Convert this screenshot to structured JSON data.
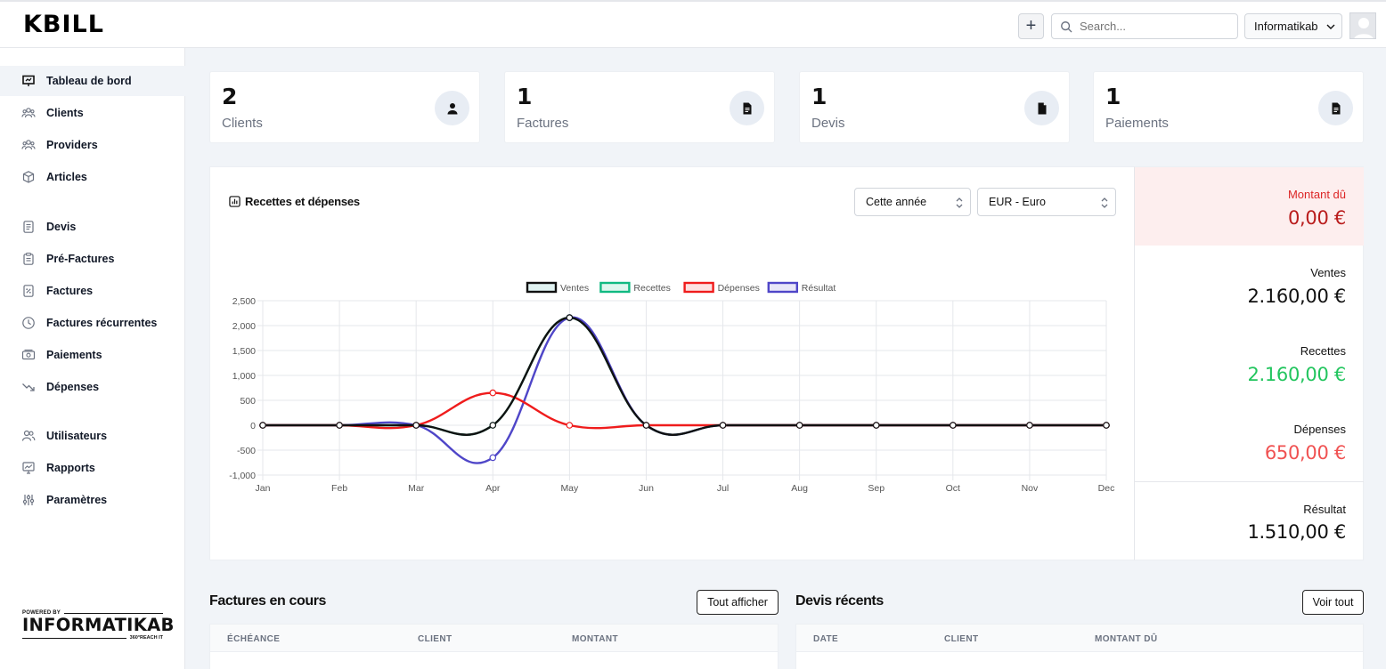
{
  "app": {
    "logo": "KBILL"
  },
  "header": {
    "plus_label": "+",
    "search_placeholder": "Search...",
    "company": "Informatikab"
  },
  "sidebar": {
    "items": [
      {
        "label": "Tableau de bord",
        "icon": "presentation-chart-icon"
      },
      {
        "label": "Clients",
        "icon": "users-icon"
      },
      {
        "label": "Providers",
        "icon": "users-icon"
      },
      {
        "label": "Articles",
        "icon": "cube-icon"
      },
      {
        "label": "Devis",
        "icon": "document-text-icon"
      },
      {
        "label": "Pré-Factures",
        "icon": "clipboard-icon"
      },
      {
        "label": "Factures",
        "icon": "receipt-icon"
      },
      {
        "label": "Factures récurrentes",
        "icon": "clock-icon"
      },
      {
        "label": "Paiements",
        "icon": "cash-icon"
      },
      {
        "label": "Dépenses",
        "icon": "trending-down-icon"
      },
      {
        "label": "Utilisateurs",
        "icon": "user-group-icon"
      },
      {
        "label": "Rapports",
        "icon": "chart-icon"
      },
      {
        "label": "Paramètres",
        "icon": "adjustments-icon"
      }
    ],
    "powered_by": "POWERED BY",
    "brand": "INFORMATIKAB",
    "tagline": "360°REACH IT"
  },
  "stats": [
    {
      "value": "2",
      "label": "Clients",
      "icon": "user-icon"
    },
    {
      "value": "1",
      "label": "Factures",
      "icon": "document-icon"
    },
    {
      "value": "1",
      "label": "Devis",
      "icon": "file-icon"
    },
    {
      "value": "1",
      "label": "Paiements",
      "icon": "document-icon"
    }
  ],
  "chart_panel": {
    "title": "Recettes et dépenses",
    "period": "Cette année",
    "currency": "EUR - Euro"
  },
  "chart_data": {
    "type": "line",
    "categories": [
      "Jan",
      "Feb",
      "Mar",
      "Apr",
      "May",
      "Jun",
      "Jul",
      "Aug",
      "Sep",
      "Oct",
      "Nov",
      "Dec"
    ],
    "ylim": [
      -1000,
      2500
    ],
    "yticks": [
      "2,500",
      "2,000",
      "1,500",
      "1,000",
      "500",
      "0",
      "-500",
      "-1,000"
    ],
    "series": [
      {
        "name": "Ventes",
        "color": "#111111",
        "values": [
          0,
          0,
          0,
          0,
          2160,
          0,
          0,
          0,
          0,
          0,
          0,
          0
        ]
      },
      {
        "name": "Recettes",
        "color": "#10b981",
        "values": [
          0,
          0,
          0,
          0,
          2160,
          0,
          0,
          0,
          0,
          0,
          0,
          0
        ]
      },
      {
        "name": "Dépenses",
        "color": "#ef1c1c",
        "values": [
          0,
          0,
          0,
          650,
          0,
          0,
          0,
          0,
          0,
          0,
          0,
          0
        ]
      },
      {
        "name": "Résultat",
        "color": "#4f46c8",
        "values": [
          0,
          0,
          0,
          -650,
          2160,
          0,
          0,
          0,
          0,
          0,
          0,
          0
        ]
      }
    ],
    "legend": "top",
    "grid": true
  },
  "summary": {
    "due_label": "Montant dû",
    "due_value": "0,00 €",
    "sales_label": "Ventes",
    "sales_value": "2.160,00 €",
    "income_label": "Recettes",
    "income_value": "2.160,00 €",
    "expenses_label": "Dépenses",
    "expenses_value": "650,00 €",
    "result_label": "Résultat",
    "result_value": "1.510,00 €"
  },
  "invoices": {
    "title": "Factures en cours",
    "button": "Tout afficher",
    "columns": [
      "ÉCHÉANCE",
      "CLIENT",
      "MONTANT"
    ]
  },
  "quotes": {
    "title": "Devis récents",
    "button": "Voir tout",
    "columns": [
      "DATE",
      "CLIENT",
      "MONTANT DÛ"
    ]
  },
  "colors": {
    "due": "#dc2626",
    "income": "#22c55e",
    "expenses": "#f05252"
  }
}
